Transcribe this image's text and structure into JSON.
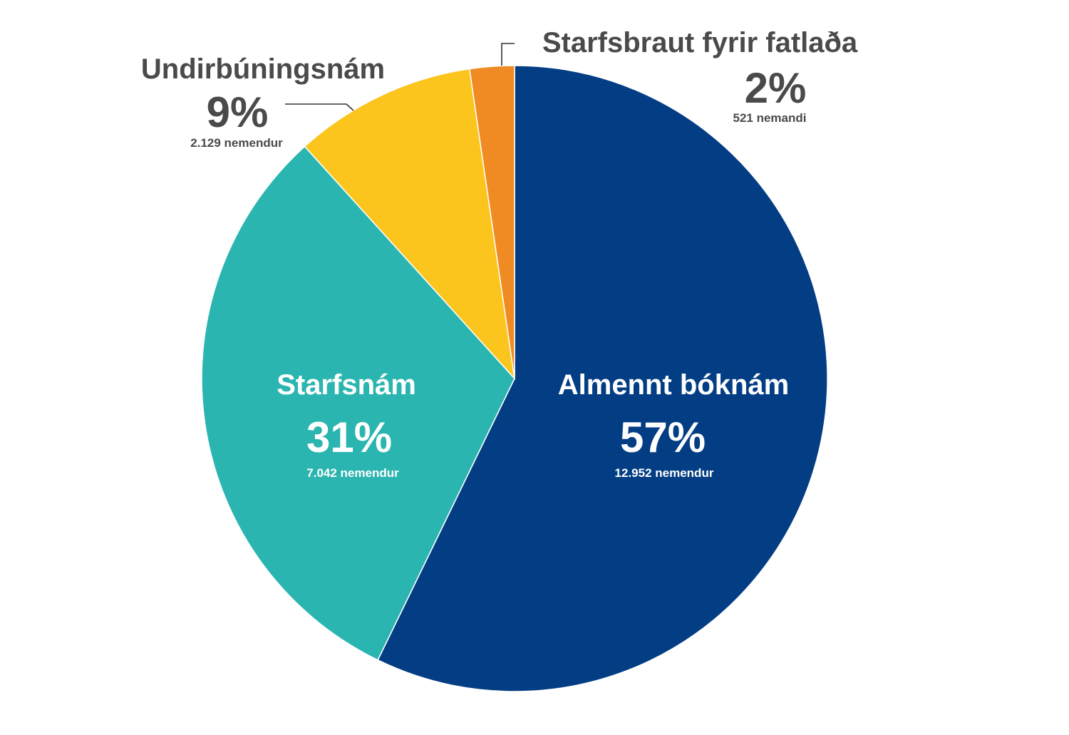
{
  "chart_data": {
    "type": "pie",
    "title": "",
    "slices": [
      {
        "name": "Almennt bóknám",
        "percent_label": "57%",
        "count_label": "12.952 nemendur",
        "value": 12952,
        "color": "#033d84"
      },
      {
        "name": "Starfsnám",
        "percent_label": "31%",
        "count_label": "7.042 nemendur",
        "value": 7042,
        "color": "#2bb5b0"
      },
      {
        "name": "Undirbúningsnám",
        "percent_label": "9%",
        "count_label": "2.129 nemendur",
        "value": 2129,
        "color": "#fbc51e"
      },
      {
        "name": "Starfsbraut fyrir fatlaða",
        "percent_label": "2%",
        "count_label": "521 nemandi",
        "value": 521,
        "color": "#ef8b22"
      }
    ]
  }
}
